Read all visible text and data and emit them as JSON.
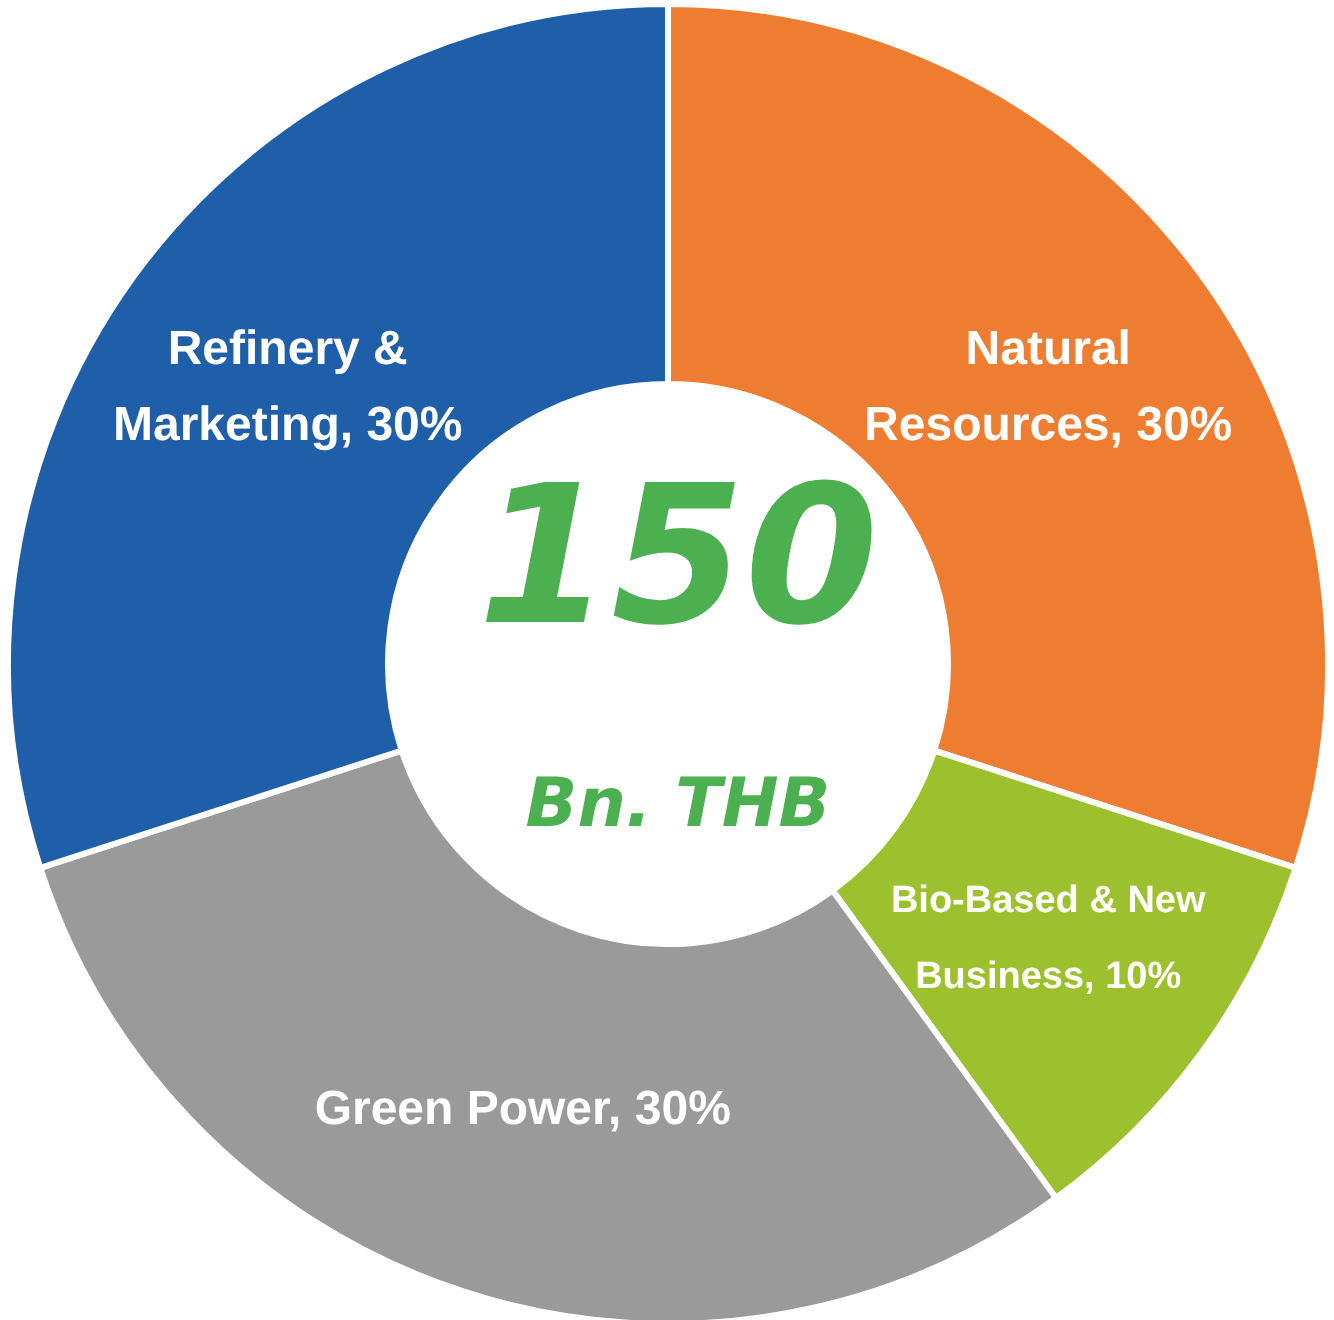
{
  "chart_data": {
    "type": "donut",
    "title": "150",
    "subtitle": "Bn. THB",
    "categories": [
      "Natural Resources",
      "Bio-Based & New Business",
      "Green Power",
      "Refinery & Marketing"
    ],
    "values": [
      30,
      10,
      30,
      30
    ],
    "value_labels": [
      "30%",
      "10%",
      "30%",
      "30%"
    ],
    "colors": [
      "#ee7d31",
      "#9dc02e",
      "#9a9a9a",
      "#1f5ea8"
    ],
    "legend": false
  }
}
